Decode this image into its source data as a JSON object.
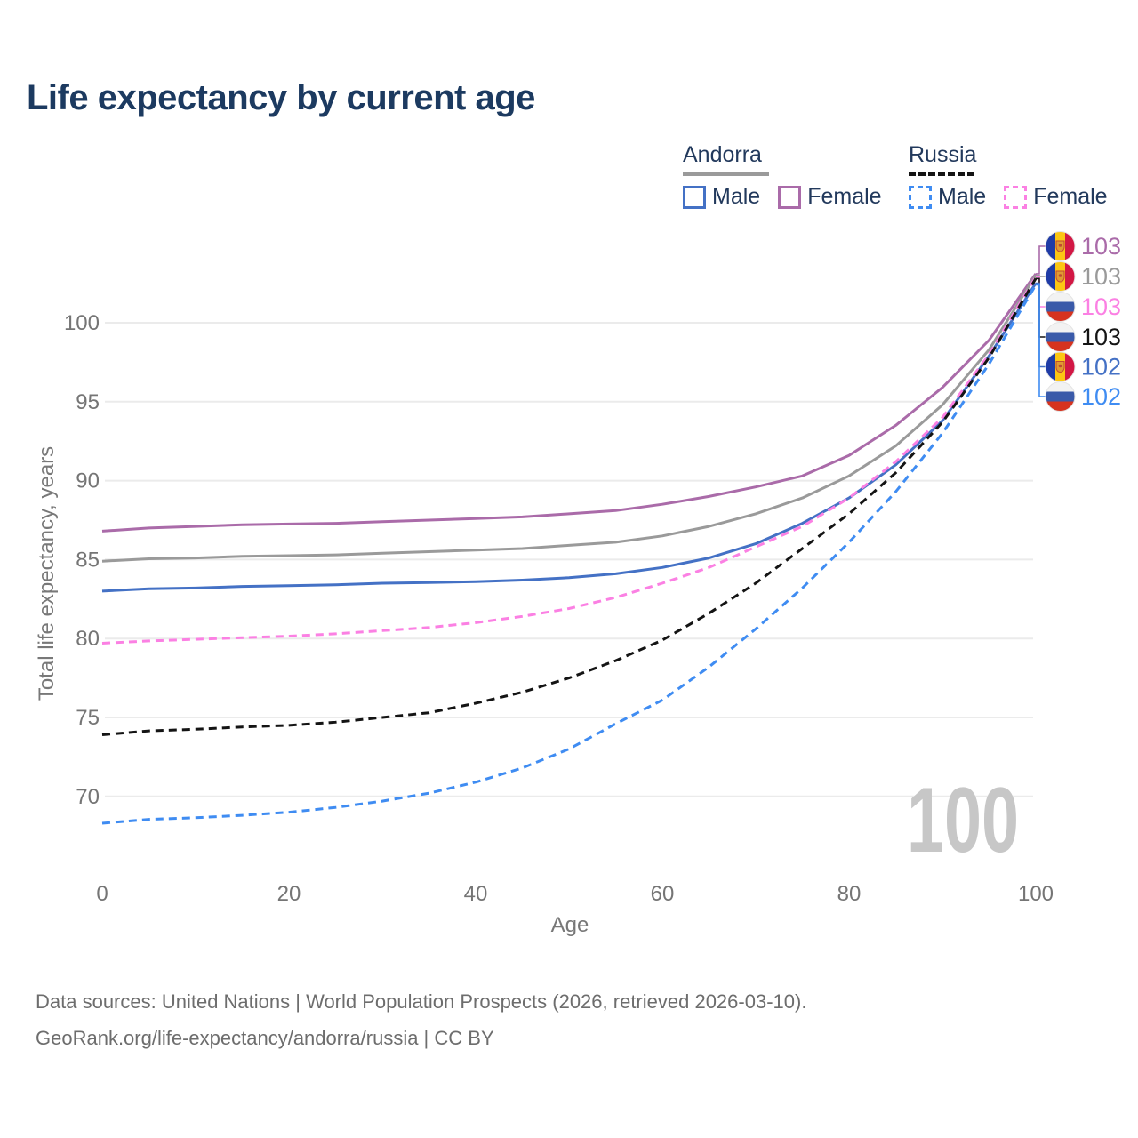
{
  "title": "Life expectancy by current age",
  "watermark": "100",
  "legend": {
    "groups": [
      {
        "name": "Andorra",
        "key": "andorra",
        "line_style": "solid",
        "line_color": "#9a9a9a",
        "items": [
          {
            "label": "Male",
            "color": "#4471c5",
            "style": "solid",
            "series": "andorra_male"
          },
          {
            "label": "Female",
            "color": "#aa6ba9",
            "style": "solid",
            "series": "andorra_female"
          }
        ]
      },
      {
        "name": "Russia",
        "key": "russia",
        "line_style": "dashed",
        "line_color": "#141414",
        "items": [
          {
            "label": "Male",
            "color": "#3f8cf2",
            "style": "dashed",
            "series": "russia_male"
          },
          {
            "label": "Female",
            "color": "#fb80e3",
            "style": "dashed",
            "series": "russia_female"
          }
        ]
      }
    ]
  },
  "y_axis": {
    "title": "Total life expectancy, years",
    "ticks": [
      100,
      95,
      90,
      85,
      80,
      75,
      70
    ]
  },
  "x_axis": {
    "title": "Age",
    "ticks": [
      0,
      20,
      40,
      60,
      80,
      100
    ]
  },
  "end_labels": [
    {
      "flag": "andorra",
      "value": "103",
      "color": "#aa6ba9",
      "series": "andorra_female"
    },
    {
      "flag": "andorra",
      "value": "103",
      "color": "#9a9a9a",
      "series": "andorra_all"
    },
    {
      "flag": "russia",
      "value": "103",
      "color": "#fb80e3",
      "series": "russia_female"
    },
    {
      "flag": "russia",
      "value": "103",
      "color": "#141414",
      "series": "russia_all"
    },
    {
      "flag": "andorra",
      "value": "102",
      "color": "#4471c5",
      "series": "andorra_male"
    },
    {
      "flag": "russia",
      "value": "102",
      "color": "#3f8cf2",
      "series": "russia_male"
    }
  ],
  "flags": {
    "andorra": {
      "blue": "#1f3ba6",
      "yellow": "#fcc614",
      "red": "#d21744",
      "crest": "#e09a33",
      "crest_detail": "#c04a30"
    },
    "russia": {
      "white": "#f2f2f2",
      "blue": "#3a5aa9",
      "red": "#d6331f",
      "edge": "#e3e3e3"
    }
  },
  "footer": {
    "line1": "Data sources: United Nations | World Population Prospects (2026, retrieved 2026-03-10).",
    "line2": "GeoRank.org/life-expectancy/andorra/russia | CC BY"
  },
  "chart_data": {
    "type": "line",
    "title": "Life expectancy by current age",
    "xlabel": "Age",
    "ylabel": "Total life expectancy, years",
    "x": [
      0,
      5,
      10,
      15,
      20,
      25,
      30,
      35,
      40,
      45,
      50,
      55,
      60,
      65,
      70,
      75,
      80,
      85,
      90,
      95,
      100
    ],
    "xlim": [
      0,
      100
    ],
    "ylim": [
      66,
      105
    ],
    "grid": "horizontal",
    "legend_position": "top-right",
    "series": [
      {
        "name": "Andorra Female",
        "key": "andorra_female",
        "color": "#aa6ba9",
        "dash": false,
        "values": [
          86.8,
          87.0,
          87.1,
          87.2,
          87.25,
          87.3,
          87.4,
          87.5,
          87.6,
          87.7,
          87.9,
          88.1,
          88.5,
          89.0,
          89.6,
          90.3,
          91.6,
          93.5,
          95.9,
          98.9,
          103.1
        ]
      },
      {
        "name": "Andorra (both sexes)",
        "key": "andorra_all",
        "color": "#9a9a9a",
        "dash": false,
        "values": [
          84.9,
          85.05,
          85.1,
          85.2,
          85.25,
          85.3,
          85.4,
          85.5,
          85.6,
          85.7,
          85.9,
          86.1,
          86.5,
          87.1,
          87.9,
          88.9,
          90.3,
          92.2,
          94.8,
          98.3,
          103.0
        ]
      },
      {
        "name": "Andorra Male",
        "key": "andorra_male",
        "color": "#4471c5",
        "dash": false,
        "values": [
          83.0,
          83.15,
          83.2,
          83.3,
          83.35,
          83.4,
          83.5,
          83.55,
          83.6,
          83.7,
          83.85,
          84.1,
          84.5,
          85.1,
          86.0,
          87.3,
          88.9,
          91.0,
          93.8,
          97.9,
          102.5
        ]
      },
      {
        "name": "Russia Female",
        "key": "russia_female",
        "color": "#fb80e3",
        "dash": true,
        "values": [
          79.7,
          79.85,
          79.95,
          80.05,
          80.15,
          80.3,
          80.5,
          80.7,
          81.0,
          81.4,
          81.9,
          82.6,
          83.5,
          84.5,
          85.8,
          87.1,
          88.9,
          91.2,
          94.0,
          98.0,
          102.9
        ]
      },
      {
        "name": "Russia (both sexes)",
        "key": "russia_all",
        "color": "#141414",
        "dash": true,
        "values": [
          73.9,
          74.15,
          74.25,
          74.4,
          74.5,
          74.7,
          75.0,
          75.3,
          75.9,
          76.6,
          77.5,
          78.6,
          79.9,
          81.6,
          83.5,
          85.7,
          87.9,
          90.5,
          93.7,
          97.8,
          102.8
        ]
      },
      {
        "name": "Russia Male",
        "key": "russia_male",
        "color": "#3f8cf2",
        "dash": true,
        "values": [
          68.3,
          68.55,
          68.65,
          68.8,
          69.0,
          69.3,
          69.7,
          70.2,
          70.9,
          71.8,
          73.0,
          74.6,
          76.1,
          78.2,
          80.6,
          83.2,
          86.1,
          89.3,
          93.0,
          97.4,
          102.4
        ]
      }
    ]
  }
}
